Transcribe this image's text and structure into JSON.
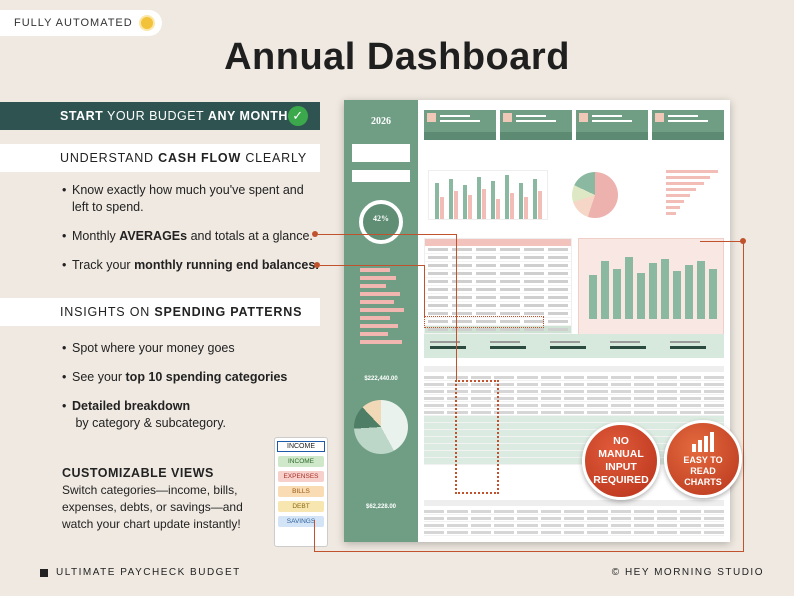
{
  "badge": {
    "label": "FULLY AUTOMATED",
    "icon": "sun-icon"
  },
  "title": "Annual Dashboard",
  "start_bar": {
    "strong1": "START",
    "text1": " YOUR BUDGET ",
    "strong2": "ANY MONTH",
    "icon": "check-circle-icon"
  },
  "section1": {
    "head_pre": "UNDERSTAND ",
    "head_strong": "CASH FLOW",
    "head_post": " CLEARLY",
    "bullets": [
      {
        "pre": "Know exactly how much you've spent and left to spend.",
        "strong": "",
        "post": ""
      },
      {
        "pre": "Monthly ",
        "strong": "AVERAGEs",
        "post": " and totals at a glance."
      },
      {
        "pre": "Track your ",
        "strong": "monthly running end balances.",
        "post": ""
      }
    ]
  },
  "section2": {
    "head_pre": "INSIGHTS ON ",
    "head_strong": "SPENDING PATTERNS",
    "bullets": [
      {
        "pre": "Spot where your money goes",
        "strong": "",
        "post": ""
      },
      {
        "pre": "See your ",
        "strong": "top 10 spending categories",
        "post": ""
      },
      {
        "pre": "",
        "strong": "Detailed breakdown",
        "post": " by category & subcategory."
      }
    ]
  },
  "custom": {
    "title": "CUSTOMIZABLE VIEWS",
    "text": "Switch categories—income, bills, expenses, debts, or savings—and watch your chart update instantly!"
  },
  "dropdown": {
    "selected": "INCOME",
    "options": [
      {
        "label": "INCOME",
        "color": "#cfe8c9",
        "text": "#2d6a2d"
      },
      {
        "label": "EXPENSES",
        "color": "#f7d0cb",
        "text": "#a8332a"
      },
      {
        "label": "BILLS",
        "color": "#f9dcb4",
        "text": "#9b5a12"
      },
      {
        "label": "DEBT",
        "color": "#f8e6b0",
        "text": "#8a6a10"
      },
      {
        "label": "SAVINGS",
        "color": "#d3e4f7",
        "text": "#2b5f9a"
      }
    ]
  },
  "dashboard": {
    "year": "2026",
    "left_ring": "42%",
    "total_income": "$222,440.00",
    "total_bills": "$62,228.00"
  },
  "stamps": {
    "manual": "NO MANUAL INPUT REQUIRED",
    "easy": "EASY TO READ CHARTS"
  },
  "footer": {
    "left": "ULTIMATE PAYCHECK BUDGET",
    "right": "© HEY MORNING STUDIO"
  },
  "colors": {
    "sage": "#6f9e85",
    "dark_teal": "#2f5351",
    "accent": "#c0532d",
    "background": "#efe9e1"
  }
}
